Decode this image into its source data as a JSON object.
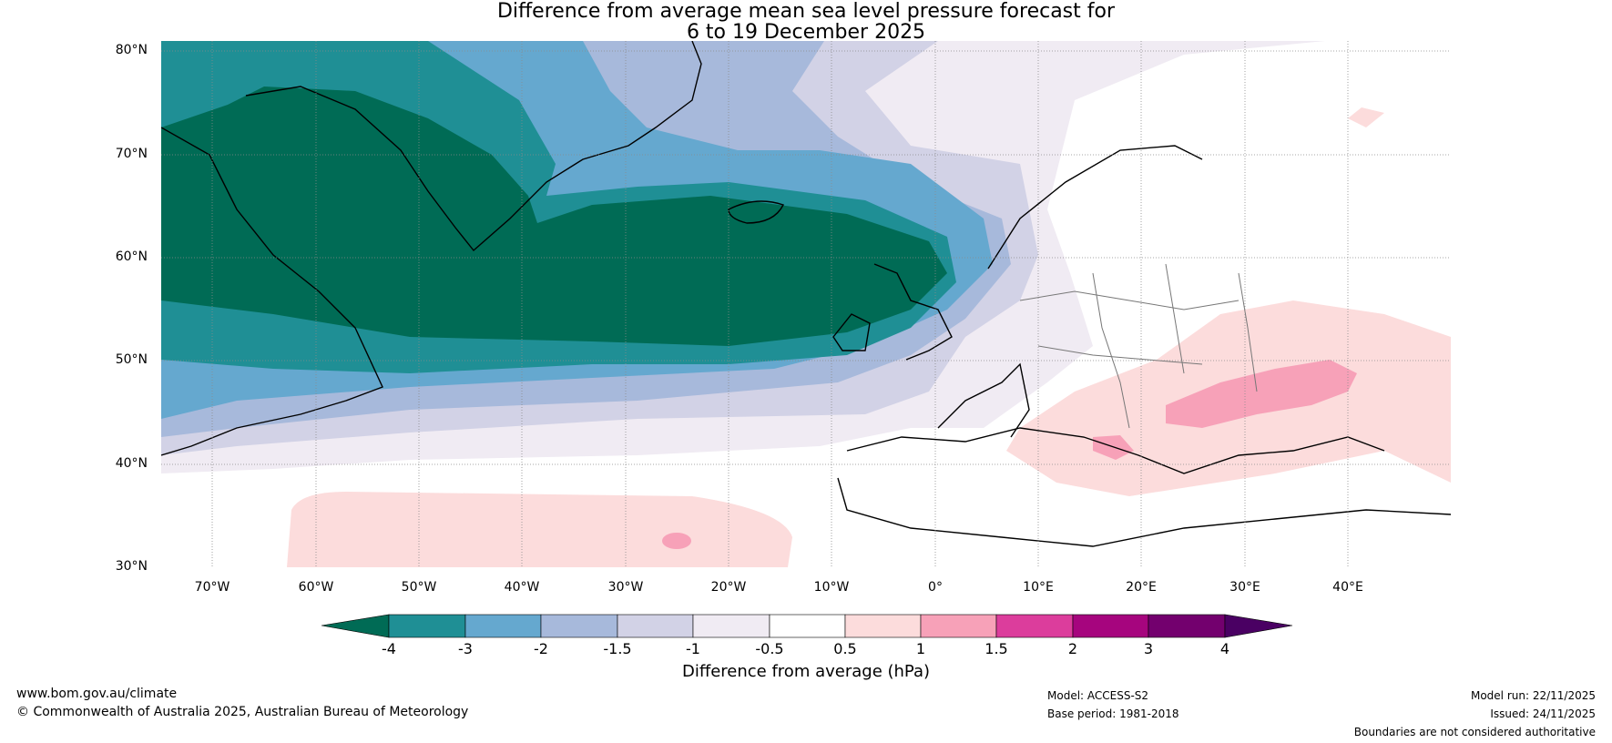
{
  "title": {
    "line1": "Difference from average mean sea level pressure forecast for",
    "line2": "6 to 19 December 2025"
  },
  "map": {
    "lat_labels": [
      "80°N",
      "70°N",
      "60°N",
      "50°N",
      "40°N",
      "30°N"
    ],
    "lon_labels": [
      "70°W",
      "60°W",
      "50°W",
      "40°W",
      "30°W",
      "20°W",
      "10°W",
      "0°",
      "10°E",
      "20°E",
      "30°E",
      "40°E"
    ],
    "lat_range": [
      30,
      80
    ],
    "lon_range": [
      -75,
      50
    ],
    "regions": [
      {
        "name": "greenland-atlantic-low",
        "level": "-4 or below"
      },
      {
        "name": "eastern-europe-high",
        "level": "1 to 1.5"
      },
      {
        "name": "subtropical-atlantic-high",
        "level": "0.5 to 1"
      }
    ]
  },
  "colorbar": {
    "label": "Difference from average (hPa)",
    "ticks": [
      "-4",
      "-3",
      "-2",
      "-1.5",
      "-1",
      "-0.5",
      "0.5",
      "1",
      "1.5",
      "2",
      "3",
      "4"
    ],
    "colors": [
      "#006b55",
      "#1f8f95",
      "#65a8cf",
      "#a7b9db",
      "#d2d2e6",
      "#f0ebf3",
      "#ffffff",
      "#fcdcdc",
      "#f7a1b8",
      "#dc3d9c",
      "#a6057e",
      "#73006e",
      "#4a0063"
    ]
  },
  "footer": {
    "website": "www.bom.gov.au/climate",
    "copyright": "© Commonwealth of Australia 2025, Australian Bureau of Meteorology",
    "model": "Model: ACCESS-S2",
    "base_period": "Base period: 1981-2018",
    "model_run": "Model run: 22/11/2025",
    "issued": "Issued: 24/11/2025",
    "disclaimer": "Boundaries are not considered authoritative"
  }
}
